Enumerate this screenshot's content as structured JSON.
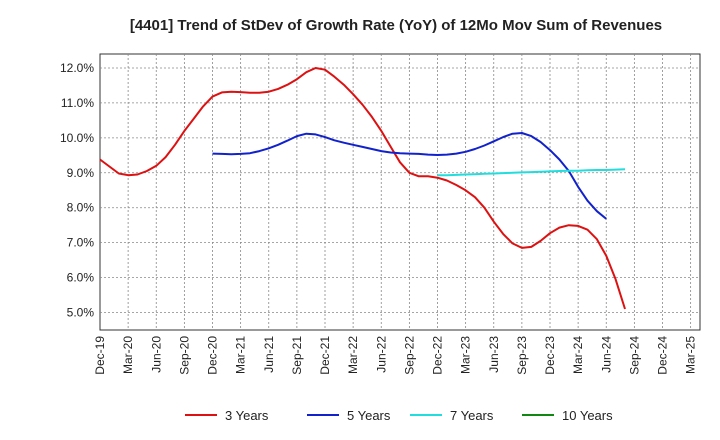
{
  "chart_data": {
    "type": "line",
    "title": "[4401]  Trend of StDev of Growth Rate (YoY) of 12Mo Mov Sum of Revenues",
    "xlabel": "",
    "ylabel": "",
    "ylim": [
      4.5,
      12.4
    ],
    "y_ticks": [
      5.0,
      6.0,
      7.0,
      8.0,
      9.0,
      10.0,
      11.0,
      12.0
    ],
    "y_tick_labels": [
      "5.0%",
      "6.0%",
      "7.0%",
      "8.0%",
      "9.0%",
      "10.0%",
      "11.0%",
      "12.0%"
    ],
    "x_tick_labels": [
      "Dec-19",
      "Mar-20",
      "Jun-20",
      "Sep-20",
      "Dec-20",
      "Mar-21",
      "Jun-21",
      "Sep-21",
      "Dec-21",
      "Mar-22",
      "Jun-22",
      "Sep-22",
      "Dec-22",
      "Mar-23",
      "Jun-23",
      "Sep-23",
      "Dec-23",
      "Mar-24",
      "Jun-24",
      "Sep-24",
      "Dec-24",
      "Mar-25"
    ],
    "x_count": 64,
    "legend_position": "bottom",
    "series": [
      {
        "name": "3 Years",
        "color": "#dd1111",
        "start_index": 0,
        "values": [
          9.38,
          9.18,
          8.98,
          8.93,
          8.95,
          9.05,
          9.2,
          9.45,
          9.8,
          10.2,
          10.55,
          10.9,
          11.18,
          11.3,
          11.32,
          11.31,
          11.29,
          11.29,
          11.32,
          11.4,
          11.52,
          11.68,
          11.88,
          12.0,
          11.95,
          11.75,
          11.52,
          11.25,
          10.95,
          10.6,
          10.2,
          9.75,
          9.3,
          9.0,
          8.9,
          8.9,
          8.86,
          8.78,
          8.65,
          8.5,
          8.3,
          8.0,
          7.6,
          7.25,
          6.98,
          6.85,
          6.88,
          7.05,
          7.27,
          7.43,
          7.5,
          7.48,
          7.37,
          7.1,
          6.62,
          5.95,
          5.1
        ]
      },
      {
        "name": "5 Years",
        "color": "#1122cc",
        "start_index": 12,
        "values": [
          9.55,
          9.54,
          9.53,
          9.54,
          9.56,
          9.62,
          9.7,
          9.8,
          9.92,
          10.05,
          10.12,
          10.1,
          10.02,
          9.93,
          9.86,
          9.8,
          9.74,
          9.68,
          9.62,
          9.58,
          9.56,
          9.55,
          9.54,
          9.52,
          9.51,
          9.52,
          9.55,
          9.6,
          9.68,
          9.78,
          9.9,
          10.02,
          10.12,
          10.14,
          10.05,
          9.88,
          9.65,
          9.38,
          9.05,
          8.6,
          8.2,
          7.9,
          7.68
        ]
      },
      {
        "name": "7 Years",
        "color": "#22dddd",
        "start_index": 36,
        "values": [
          8.93,
          8.93,
          8.94,
          8.95,
          8.96,
          8.97,
          8.98,
          8.99,
          9.0,
          9.01,
          9.02,
          9.03,
          9.04,
          9.05,
          9.06,
          9.06,
          9.07,
          9.08,
          9.08,
          9.09,
          9.1
        ]
      },
      {
        "name": "10 Years",
        "color": "#118811",
        "start_index": 0,
        "values": []
      }
    ]
  }
}
